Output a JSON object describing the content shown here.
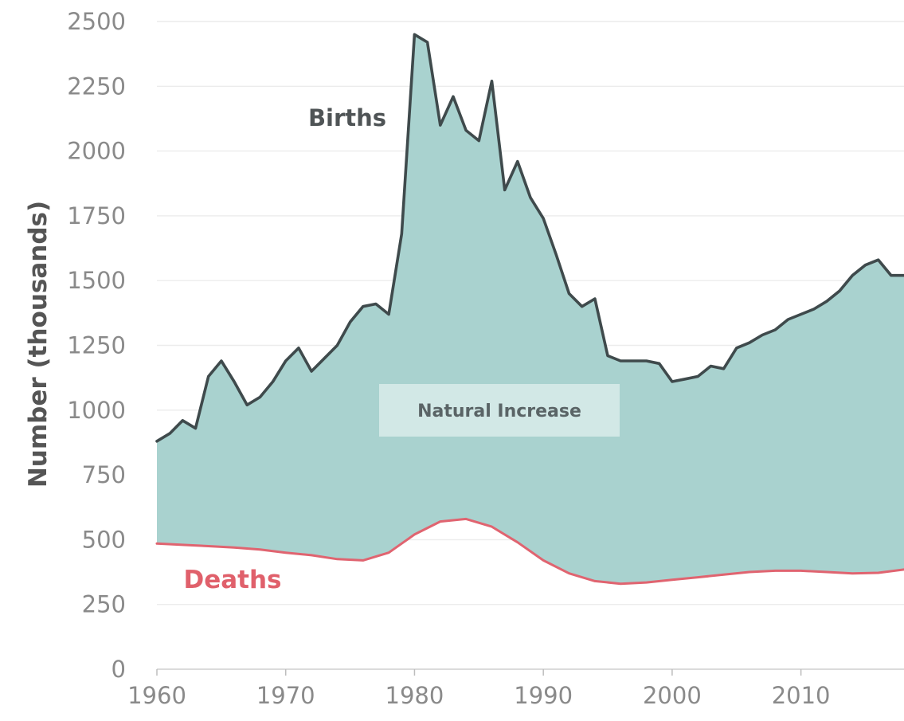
{
  "chart_data": {
    "type": "area",
    "ylabel": "Number (thousands)",
    "xlabel": "",
    "xlim": [
      1960,
      2018
    ],
    "ylim": [
      0,
      2500
    ],
    "x_ticks": [
      "1960",
      "1970",
      "1980",
      "1990",
      "2000",
      "2010"
    ],
    "y_ticks": [
      "0",
      "250",
      "500",
      "750",
      "1000",
      "1250",
      "1500",
      "1750",
      "2000",
      "2250",
      "2500"
    ],
    "grid": "horizontal",
    "colors": {
      "fill": "#a9d2cf",
      "births_line": "#3f4a4c",
      "deaths_line": "#e06470",
      "gridline": "#ececec"
    },
    "annotations": {
      "births": "Births",
      "deaths": "Deaths",
      "natural_increase": "Natural Increase"
    },
    "series": [
      {
        "name": "Births",
        "x": [
          1960,
          1961,
          1962,
          1963,
          1964,
          1965,
          1966,
          1967,
          1968,
          1969,
          1970,
          1971,
          1972,
          1973,
          1974,
          1975,
          1976,
          1977,
          1978,
          1979,
          1980,
          1981,
          1982,
          1983,
          1984,
          1985,
          1986,
          1987,
          1988,
          1989,
          1990,
          1991,
          1992,
          1993,
          1994,
          1995,
          1996,
          1997,
          1998,
          1999,
          2000,
          2001,
          2002,
          2003,
          2004,
          2005,
          2006,
          2007,
          2008,
          2009,
          2010,
          2011,
          2012,
          2013,
          2014,
          2015,
          2016,
          2017,
          2018
        ],
        "values": [
          880,
          910,
          960,
          930,
          1130,
          1190,
          1110,
          1020,
          1050,
          1110,
          1190,
          1240,
          1150,
          1200,
          1250,
          1340,
          1400,
          1410,
          1370,
          1680,
          2450,
          2420,
          2100,
          2210,
          2080,
          2040,
          2270,
          1850,
          1960,
          1820,
          1740,
          1600,
          1450,
          1400,
          1430,
          1210,
          1190,
          1190,
          1190,
          1180,
          1110,
          1120,
          1130,
          1170,
          1160,
          1240,
          1260,
          1290,
          1310,
          1350,
          1370,
          1390,
          1420,
          1460,
          1520,
          1560,
          1580,
          1520,
          1520
        ]
      },
      {
        "name": "Deaths",
        "x": [
          1960,
          1962,
          1964,
          1966,
          1968,
          1970,
          1972,
          1974,
          1976,
          1978,
          1980,
          1982,
          1984,
          1986,
          1988,
          1990,
          1992,
          1994,
          1996,
          1998,
          2000,
          2002,
          2004,
          2006,
          2008,
          2010,
          2012,
          2014,
          2016,
          2018
        ],
        "values": [
          485,
          480,
          475,
          470,
          462,
          450,
          440,
          425,
          420,
          450,
          520,
          570,
          580,
          550,
          490,
          420,
          370,
          340,
          330,
          335,
          345,
          355,
          365,
          375,
          380,
          380,
          375,
          370,
          372,
          385
        ]
      }
    ]
  }
}
